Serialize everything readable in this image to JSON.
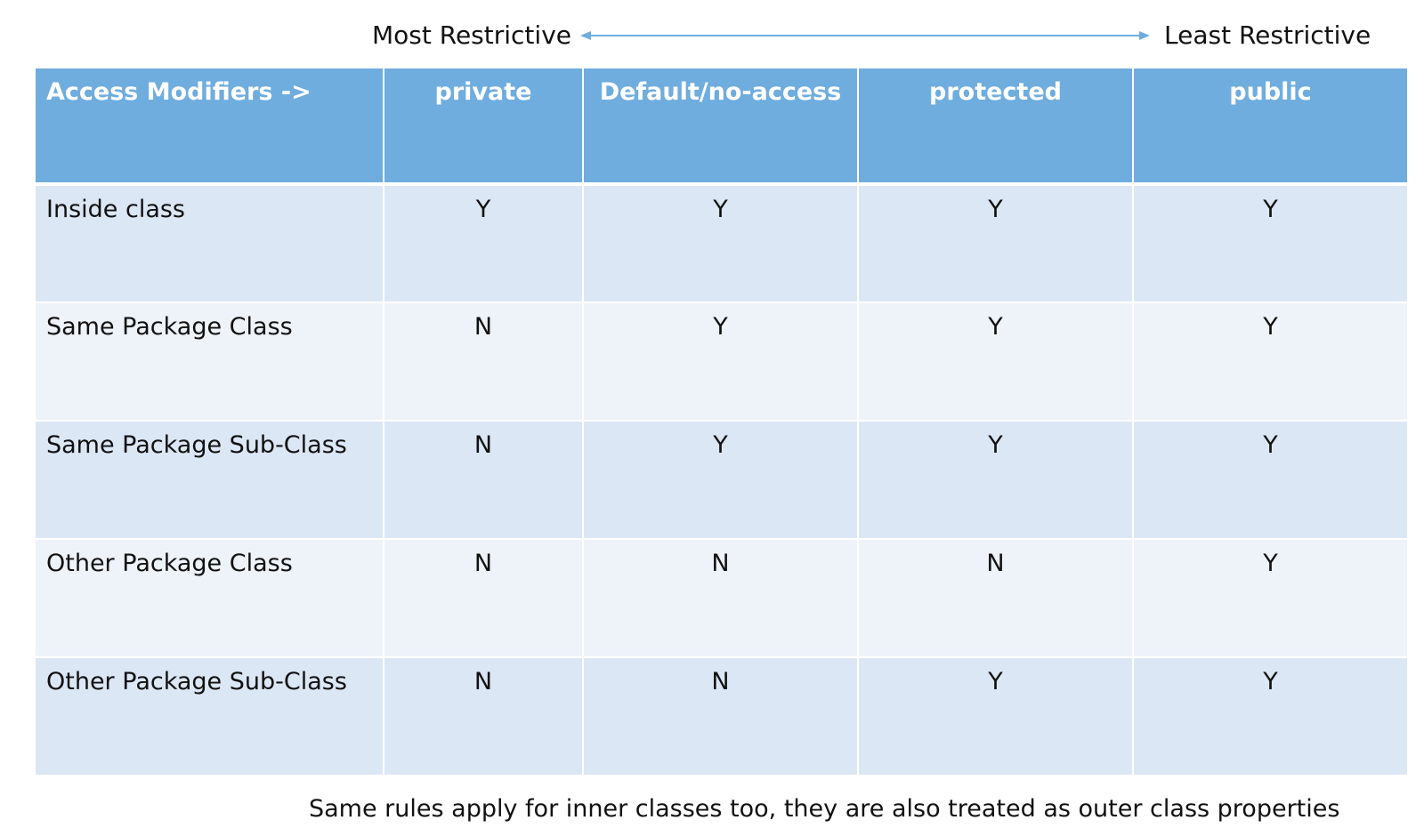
{
  "scale": {
    "left_label": "Most Restrictive",
    "right_label": "Least Restrictive",
    "arrow_color": "#6fadde"
  },
  "table": {
    "header_color": "#6fadde",
    "row_color_odd": "#dce7f5",
    "row_color_even": "#eef3fa",
    "header": [
      "Access Modifiers ->",
      "private",
      "Default/no-access",
      "protected",
      "public"
    ],
    "rows": [
      {
        "label": "Inside class",
        "values": [
          "Y",
          "Y",
          "Y",
          "Y"
        ]
      },
      {
        "label": "Same Package Class",
        "values": [
          "N",
          "Y",
          "Y",
          "Y"
        ]
      },
      {
        "label": "Same Package Sub-Class",
        "values": [
          "N",
          "Y",
          "Y",
          "Y"
        ]
      },
      {
        "label": "Other Package Class",
        "values": [
          "N",
          "N",
          "N",
          "Y"
        ]
      },
      {
        "label": "Other Package Sub-Class",
        "values": [
          "N",
          "N",
          "Y",
          "Y"
        ]
      }
    ]
  },
  "footnote": "Same rules apply for inner classes too, they are also treated as outer class properties"
}
